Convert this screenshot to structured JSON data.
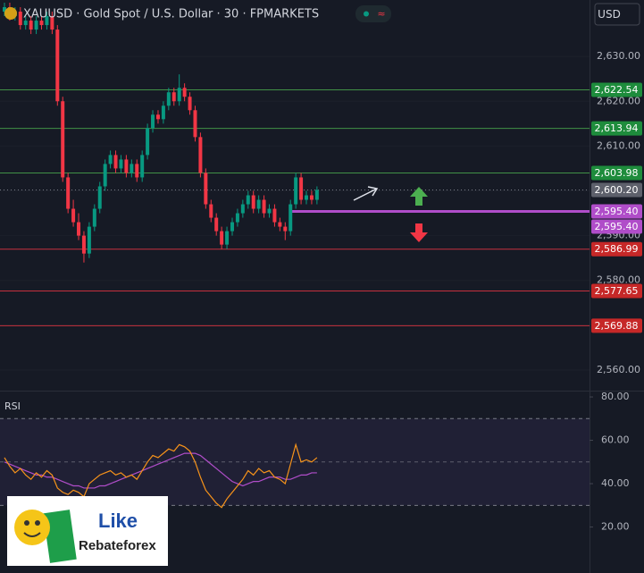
{
  "chart_data": [
    {
      "type": "candlestick",
      "title": "XAUUSD · Gold Spot / U.S. Dollar · 30 · FPMARKETS",
      "currency": "USD",
      "up_color": "#089981",
      "down_color": "#f23645",
      "open": [
        2640,
        2641,
        2639,
        2640,
        2637,
        2638,
        2636,
        2638,
        2637,
        2639,
        2636,
        2620,
        2603,
        2596,
        2593,
        2590,
        2586,
        2592,
        2596,
        2601,
        2606,
        2608,
        2605,
        2607,
        2604,
        2606,
        2603,
        2608,
        2614,
        2617,
        2616,
        2619,
        2622,
        2620,
        2623,
        2621,
        2618,
        2612,
        2604,
        2597,
        2594,
        2591,
        2588,
        2591,
        2593,
        2595,
        2597,
        2599,
        2596,
        2598,
        2595,
        2596,
        2593,
        2592,
        2591,
        2597,
        2603,
        2598,
        2599,
        2598
      ],
      "high": [
        2642,
        2642,
        2641,
        2641,
        2639,
        2639,
        2639,
        2639,
        2640,
        2640,
        2637,
        2621,
        2604,
        2598,
        2595,
        2591,
        2593,
        2597,
        2602,
        2607,
        2609,
        2609,
        2608,
        2608,
        2607,
        2607,
        2609,
        2615,
        2618,
        2618,
        2620,
        2623,
        2623,
        2626,
        2624,
        2622,
        2619,
        2613,
        2605,
        2598,
        2595,
        2592,
        2592,
        2594,
        2596,
        2598,
        2600,
        2600,
        2599,
        2599,
        2597,
        2597,
        2594,
        2593,
        2598,
        2604,
        2604,
        2600,
        2600,
        2601
      ],
      "low": [
        2639,
        2638,
        2638,
        2636,
        2636,
        2635,
        2635,
        2636,
        2636,
        2635,
        2619,
        2602,
        2595,
        2592,
        2589,
        2584,
        2585,
        2591,
        2595,
        2600,
        2605,
        2604,
        2604,
        2603,
        2603,
        2602,
        2602,
        2607,
        2613,
        2615,
        2615,
        2618,
        2619,
        2619,
        2620,
        2617,
        2611,
        2603,
        2596,
        2593,
        2590,
        2587,
        2587,
        2590,
        2592,
        2594,
        2596,
        2595,
        2595,
        2594,
        2594,
        2592,
        2591,
        2589,
        2590,
        2596,
        2597,
        2597,
        2597,
        2597
      ],
      "close": [
        2641,
        2639,
        2640,
        2637,
        2638,
        2636,
        2638,
        2637,
        2639,
        2636,
        2620,
        2603,
        2596,
        2593,
        2590,
        2586,
        2592,
        2596,
        2601,
        2606,
        2608,
        2605,
        2607,
        2604,
        2606,
        2603,
        2608,
        2614,
        2617,
        2616,
        2619,
        2622,
        2620,
        2623,
        2621,
        2618,
        2612,
        2604,
        2597,
        2594,
        2591,
        2588,
        2591,
        2593,
        2595,
        2597,
        2599,
        2596,
        2598,
        2595,
        2596,
        2593,
        2592,
        2591,
        2597,
        2603,
        2598,
        2599,
        2598,
        2600.2
      ],
      "ylim": [
        2555.4,
        2642.6
      ],
      "yticks": [
        {
          "value": 2560,
          "label": "2,560.00"
        },
        {
          "value": 2570,
          "label": "2,570.00"
        },
        {
          "value": 2580,
          "label": "2,580.00"
        },
        {
          "value": 2590,
          "label": "2,590.00"
        },
        {
          "value": 2600,
          "label": "2,600.00"
        },
        {
          "value": 2610,
          "label": "2,610.00"
        },
        {
          "value": 2620,
          "label": "2,620.00"
        },
        {
          "value": 2630,
          "label": "2,630.00"
        }
      ],
      "levels": [
        {
          "value": 2622.54,
          "label": "2,622.54",
          "color": "#4caf50"
        },
        {
          "value": 2613.94,
          "label": "2,613.94",
          "color": "#4caf50"
        },
        {
          "value": 2603.98,
          "label": "2,603.98",
          "color": "#4caf50"
        },
        {
          "value": 2586.99,
          "label": "2,586.99",
          "color": "#f23645"
        },
        {
          "value": 2577.65,
          "label": "2,577.65",
          "color": "#f23645"
        },
        {
          "value": 2569.88,
          "label": "2,569.88",
          "color": "#f23645"
        }
      ],
      "horizontal_ray": {
        "value": 2595.4,
        "label": "2,595.40",
        "color": "#b04dc9"
      },
      "last_price": {
        "value": 2600.2,
        "label": "2,600.20",
        "color": "#5d606b"
      }
    },
    {
      "type": "line",
      "title": "RSI",
      "ylim": [
        -1.2,
        82.9
      ],
      "yticks": [
        {
          "value": 20,
          "label": "20.00"
        },
        {
          "value": 40,
          "label": "40.00"
        },
        {
          "value": 60,
          "label": "60.00"
        },
        {
          "value": 80,
          "label": "80.00"
        }
      ],
      "band": [
        30,
        70
      ],
      "midline": 50,
      "series": [
        {
          "color": "#f7931a",
          "values": [
            52,
            48,
            45,
            47,
            44,
            42,
            45,
            43,
            46,
            44,
            38,
            36,
            35,
            37,
            36,
            34,
            40,
            42,
            44,
            45,
            46,
            44,
            45,
            43,
            44,
            42,
            46,
            50,
            53,
            52,
            54,
            56,
            55,
            58,
            57,
            55,
            50,
            43,
            37,
            34,
            31,
            29,
            33,
            36,
            39,
            42,
            46,
            44,
            47,
            45,
            46,
            43,
            42,
            40,
            49,
            58,
            50,
            51,
            50,
            52
          ]
        },
        {
          "color": "#b04dc9",
          "values": [
            50,
            49,
            48,
            47,
            46,
            45,
            44,
            44,
            43,
            43,
            42,
            41,
            40,
            39,
            39,
            38,
            38,
            38,
            39,
            39,
            40,
            41,
            42,
            43,
            44,
            45,
            46,
            47,
            48,
            49,
            50,
            51,
            52,
            53,
            54,
            54,
            54,
            53,
            51,
            49,
            47,
            45,
            43,
            41,
            40,
            39,
            40,
            41,
            41,
            42,
            43,
            43,
            43,
            42,
            42,
            43,
            44,
            44,
            45,
            45
          ]
        }
      ]
    }
  ],
  "logo": {
    "line1": "Like",
    "line2": "Rebateforex"
  }
}
